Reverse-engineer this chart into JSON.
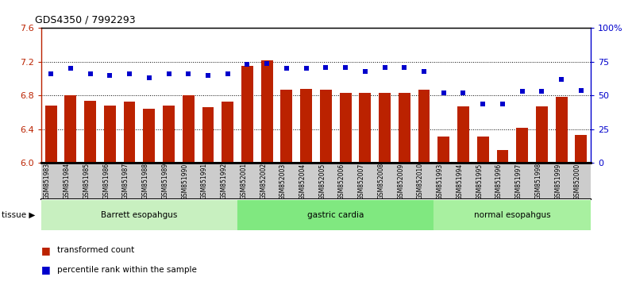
{
  "title": "GDS4350 / 7992293",
  "samples": [
    "GSM851983",
    "GSM851984",
    "GSM851985",
    "GSM851986",
    "GSM851987",
    "GSM851988",
    "GSM851989",
    "GSM851990",
    "GSM851991",
    "GSM851992",
    "GSM852001",
    "GSM852002",
    "GSM852003",
    "GSM852004",
    "GSM852005",
    "GSM852006",
    "GSM852007",
    "GSM852008",
    "GSM852009",
    "GSM852010",
    "GSM851993",
    "GSM851994",
    "GSM851995",
    "GSM851996",
    "GSM851997",
    "GSM851998",
    "GSM851999",
    "GSM852000"
  ],
  "bar_values": [
    6.68,
    6.8,
    6.74,
    6.68,
    6.73,
    6.64,
    6.68,
    6.8,
    6.66,
    6.73,
    7.15,
    7.22,
    6.87,
    6.88,
    6.87,
    6.83,
    6.83,
    6.83,
    6.83,
    6.87,
    6.31,
    6.67,
    6.31,
    6.15,
    6.42,
    6.67,
    6.78,
    6.33
  ],
  "percentile_values": [
    66,
    70,
    66,
    65,
    66,
    63,
    66,
    66,
    65,
    66,
    73,
    74,
    70,
    70,
    71,
    71,
    68,
    71,
    71,
    68,
    52,
    52,
    44,
    44,
    53,
    53,
    62,
    54
  ],
  "groups": [
    {
      "label": "Barrett esopahgus",
      "start": 0,
      "end": 10,
      "color": "#c8f0c0"
    },
    {
      "label": "gastric cardia",
      "start": 10,
      "end": 20,
      "color": "#80e880"
    },
    {
      "label": "normal esopahgus",
      "start": 20,
      "end": 28,
      "color": "#a8f0a0"
    }
  ],
  "bar_color": "#bb2200",
  "dot_color": "#0000cc",
  "ylim_left": [
    6.0,
    7.6
  ],
  "ylim_right": [
    0,
    100
  ],
  "yticks_left": [
    6.0,
    6.4,
    6.8,
    7.2,
    7.6
  ],
  "yticks_right": [
    0,
    25,
    50,
    75,
    100
  ],
  "ylabel_right_labels": [
    "0",
    "25",
    "50",
    "75",
    "100%"
  ],
  "grid_values": [
    6.4,
    6.8,
    7.2
  ],
  "background_color": "#ffffff",
  "tick_area_color": "#cccccc"
}
